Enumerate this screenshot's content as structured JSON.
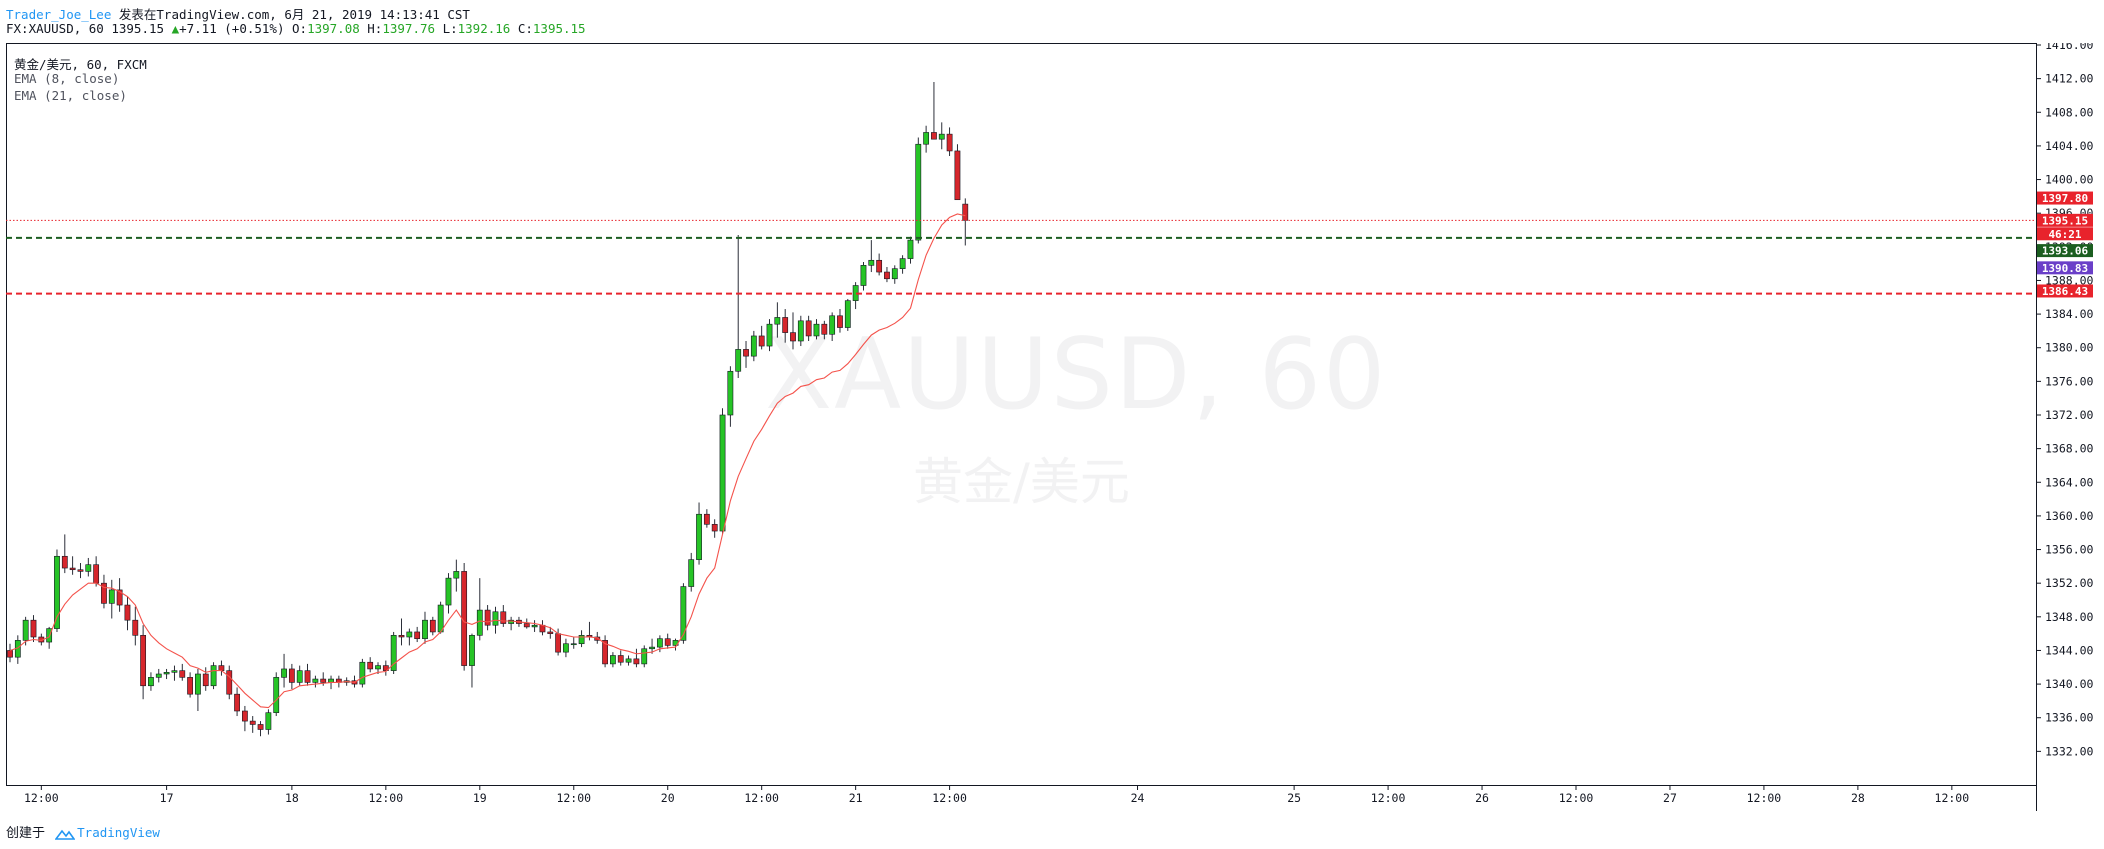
{
  "header": {
    "author": "Trader_Joe_Lee",
    "published": "发表在TradingView.com, 6月 21, 2019 14:13:41 CST",
    "symbol_line": "FX:XAUUSD, 60 1395.15",
    "change": "+7.11 (+0.51%)",
    "o_label": "O:",
    "o_value": "1397.08",
    "h_label": "H:",
    "h_value": "1397.76",
    "l_label": "L:",
    "l_value": "1392.16",
    "c_label": "C:",
    "c_value": "1395.15"
  },
  "legend": {
    "title": "黄金/美元, 60, FXCM",
    "ema8": "EMA (8, close)",
    "ema21": "EMA (21, close)"
  },
  "watermark": {
    "symbol": "XAUUSD, 60",
    "name": "黄金/美元"
  },
  "footer": {
    "created_with": "创建于",
    "brand": "TradingView"
  },
  "colors": {
    "bull": "#26c426",
    "bear": "#d6262c",
    "ema8": "#f4534c",
    "ema21": "#7046c9",
    "green_line": "#1b5e20",
    "red_line": "#e8232c",
    "grid": "#e1e3ea"
  },
  "chart_data": {
    "type": "candlestick",
    "symbol": "FX:XAUUSD",
    "interval": "60",
    "ylim": [
      1328,
      1416
    ],
    "ytick_labels": [
      "1416.00",
      "1412.00",
      "1408.00",
      "1404.00",
      "1400.00",
      "1396.00",
      "1392.00",
      "1388.00",
      "1384.00",
      "1380.00",
      "1376.00",
      "1372.00",
      "1368.00",
      "1364.00",
      "1360.00",
      "1356.00",
      "1352.00",
      "1348.00",
      "1344.00",
      "1340.00",
      "1336.00",
      "1332.00"
    ],
    "xtick_labels": [
      {
        "bar": 4,
        "label": "12:00"
      },
      {
        "bar": 20,
        "label": "17"
      },
      {
        "bar": 36,
        "label": "18"
      },
      {
        "bar": 48,
        "label": "12:00"
      },
      {
        "bar": 60,
        "label": "19"
      },
      {
        "bar": 72,
        "label": "12:00"
      },
      {
        "bar": 84,
        "label": "20"
      },
      {
        "bar": 96,
        "label": "12:00"
      },
      {
        "bar": 108,
        "label": "21"
      },
      {
        "bar": 120,
        "label": "12:00"
      },
      {
        "bar": 144,
        "label": "24"
      },
      {
        "bar": 164,
        "label": "25"
      },
      {
        "bar": 176,
        "label": "12:00"
      },
      {
        "bar": 188,
        "label": "26"
      },
      {
        "bar": 200,
        "label": "12:00"
      },
      {
        "bar": 212,
        "label": "27"
      },
      {
        "bar": 224,
        "label": "12:00"
      },
      {
        "bar": 236,
        "label": "28"
      },
      {
        "bar": 248,
        "label": "12:00"
      }
    ],
    "bars": [
      [
        1344.0,
        1344.8,
        1342.6,
        1343.2
      ],
      [
        1343.2,
        1345.8,
        1342.4,
        1345.2
      ],
      [
        1345.2,
        1348.0,
        1344.6,
        1347.6
      ],
      [
        1347.6,
        1348.2,
        1345.0,
        1345.6
      ],
      [
        1345.6,
        1346.0,
        1344.6,
        1345.0
      ],
      [
        1345.0,
        1346.8,
        1344.2,
        1346.6
      ],
      [
        1346.6,
        1356.0,
        1346.2,
        1355.2
      ],
      [
        1355.2,
        1357.8,
        1353.2,
        1353.8
      ],
      [
        1353.8,
        1355.2,
        1353.0,
        1353.6
      ],
      [
        1353.6,
        1354.4,
        1352.6,
        1353.4
      ],
      [
        1353.4,
        1355.0,
        1352.8,
        1354.2
      ],
      [
        1354.2,
        1355.2,
        1351.6,
        1352.0
      ],
      [
        1352.0,
        1353.0,
        1349.0,
        1349.6
      ],
      [
        1349.6,
        1352.4,
        1347.8,
        1351.2
      ],
      [
        1351.2,
        1352.6,
        1348.6,
        1349.4
      ],
      [
        1349.4,
        1350.4,
        1346.4,
        1347.6
      ],
      [
        1347.6,
        1349.2,
        1344.6,
        1345.8
      ],
      [
        1345.8,
        1347.0,
        1338.2,
        1339.8
      ],
      [
        1339.8,
        1341.4,
        1339.2,
        1340.8
      ],
      [
        1340.8,
        1341.8,
        1340.2,
        1341.2
      ],
      [
        1341.2,
        1341.8,
        1340.6,
        1341.4
      ],
      [
        1341.4,
        1342.2,
        1340.4,
        1341.6
      ],
      [
        1341.6,
        1342.4,
        1340.4,
        1340.8
      ],
      [
        1340.8,
        1341.4,
        1338.4,
        1338.8
      ],
      [
        1338.8,
        1341.8,
        1336.8,
        1341.2
      ],
      [
        1341.2,
        1342.0,
        1339.2,
        1339.8
      ],
      [
        1339.8,
        1342.6,
        1339.4,
        1342.2
      ],
      [
        1342.2,
        1342.8,
        1341.0,
        1341.6
      ],
      [
        1341.6,
        1342.2,
        1338.2,
        1338.8
      ],
      [
        1338.8,
        1339.6,
        1336.2,
        1336.8
      ],
      [
        1336.8,
        1337.4,
        1334.4,
        1335.6
      ],
      [
        1335.6,
        1336.2,
        1334.2,
        1335.2
      ],
      [
        1335.2,
        1335.6,
        1333.8,
        1334.6
      ],
      [
        1334.6,
        1337.0,
        1334.0,
        1336.6
      ],
      [
        1336.6,
        1341.4,
        1336.2,
        1340.8
      ],
      [
        1340.8,
        1343.6,
        1339.6,
        1341.8
      ],
      [
        1341.8,
        1342.4,
        1339.4,
        1340.2
      ],
      [
        1340.2,
        1342.2,
        1339.8,
        1341.6
      ],
      [
        1341.6,
        1342.4,
        1339.8,
        1340.2
      ],
      [
        1340.2,
        1341.0,
        1339.6,
        1340.6
      ],
      [
        1340.6,
        1341.4,
        1339.8,
        1340.2
      ],
      [
        1340.2,
        1341.0,
        1339.4,
        1340.6
      ],
      [
        1340.6,
        1341.0,
        1339.6,
        1340.2
      ],
      [
        1340.2,
        1340.8,
        1339.8,
        1340.4
      ],
      [
        1340.4,
        1341.0,
        1339.6,
        1340.0
      ],
      [
        1340.0,
        1343.0,
        1339.6,
        1342.6
      ],
      [
        1342.6,
        1343.2,
        1341.4,
        1341.8
      ],
      [
        1341.8,
        1342.6,
        1341.2,
        1342.2
      ],
      [
        1342.2,
        1342.8,
        1341.0,
        1341.6
      ],
      [
        1341.6,
        1346.2,
        1341.2,
        1345.8
      ],
      [
        1345.8,
        1347.8,
        1344.6,
        1345.6
      ],
      [
        1345.6,
        1346.6,
        1344.6,
        1346.2
      ],
      [
        1346.2,
        1346.8,
        1345.0,
        1345.4
      ],
      [
        1345.4,
        1348.6,
        1344.8,
        1347.6
      ],
      [
        1347.6,
        1348.0,
        1345.8,
        1346.2
      ],
      [
        1346.2,
        1349.8,
        1346.0,
        1349.4
      ],
      [
        1349.4,
        1353.2,
        1348.4,
        1352.6
      ],
      [
        1352.6,
        1354.8,
        1351.0,
        1353.4
      ],
      [
        1353.4,
        1354.4,
        1341.6,
        1342.2
      ],
      [
        1342.2,
        1346.0,
        1339.6,
        1345.8
      ],
      [
        1345.8,
        1352.6,
        1345.2,
        1348.8
      ],
      [
        1348.8,
        1349.4,
        1346.4,
        1347.0
      ],
      [
        1347.0,
        1349.2,
        1346.0,
        1348.6
      ],
      [
        1348.6,
        1349.4,
        1346.8,
        1347.2
      ],
      [
        1347.2,
        1348.0,
        1346.4,
        1347.6
      ],
      [
        1347.6,
        1348.0,
        1346.8,
        1347.2
      ],
      [
        1347.2,
        1347.8,
        1346.6,
        1346.8
      ],
      [
        1346.8,
        1347.6,
        1346.2,
        1347.0
      ],
      [
        1347.0,
        1347.6,
        1345.8,
        1346.2
      ],
      [
        1346.2,
        1346.8,
        1345.4,
        1346.0
      ],
      [
        1346.0,
        1346.6,
        1343.4,
        1343.8
      ],
      [
        1343.8,
        1345.4,
        1343.2,
        1344.8
      ],
      [
        1344.8,
        1345.6,
        1344.2,
        1344.8
      ],
      [
        1344.8,
        1346.4,
        1344.4,
        1345.8
      ],
      [
        1345.8,
        1347.4,
        1345.2,
        1345.6
      ],
      [
        1345.6,
        1346.2,
        1344.8,
        1345.2
      ],
      [
        1345.2,
        1345.8,
        1342.0,
        1342.4
      ],
      [
        1342.4,
        1343.8,
        1342.0,
        1343.4
      ],
      [
        1343.4,
        1344.0,
        1342.2,
        1342.6
      ],
      [
        1342.6,
        1343.4,
        1342.2,
        1343.0
      ],
      [
        1343.0,
        1344.2,
        1342.0,
        1342.4
      ],
      [
        1342.4,
        1344.6,
        1342.0,
        1344.2
      ],
      [
        1344.2,
        1345.4,
        1343.6,
        1344.4
      ],
      [
        1344.4,
        1345.8,
        1343.8,
        1345.4
      ],
      [
        1345.4,
        1346.0,
        1344.2,
        1344.6
      ],
      [
        1344.6,
        1345.4,
        1344.0,
        1345.2
      ],
      [
        1345.2,
        1352.0,
        1344.8,
        1351.6
      ],
      [
        1351.6,
        1355.6,
        1351.0,
        1354.8
      ],
      [
        1354.8,
        1361.6,
        1354.2,
        1360.2
      ],
      [
        1360.2,
        1360.8,
        1358.6,
        1359.0
      ],
      [
        1359.0,
        1359.6,
        1357.4,
        1358.2
      ],
      [
        1358.2,
        1372.8,
        1357.8,
        1372.0
      ],
      [
        1372.0,
        1377.8,
        1370.6,
        1377.2
      ],
      [
        1377.2,
        1393.4,
        1376.4,
        1379.8
      ],
      [
        1379.8,
        1380.8,
        1377.6,
        1379.0
      ],
      [
        1379.0,
        1382.0,
        1378.4,
        1381.4
      ],
      [
        1381.4,
        1382.6,
        1379.8,
        1380.2
      ],
      [
        1380.2,
        1383.4,
        1379.6,
        1382.8
      ],
      [
        1382.8,
        1385.4,
        1381.2,
        1383.6
      ],
      [
        1383.6,
        1384.6,
        1380.6,
        1381.8
      ],
      [
        1381.8,
        1384.2,
        1379.8,
        1380.8
      ],
      [
        1380.8,
        1383.8,
        1380.2,
        1383.2
      ],
      [
        1383.2,
        1383.8,
        1380.8,
        1381.4
      ],
      [
        1381.4,
        1383.4,
        1381.0,
        1382.8
      ],
      [
        1382.8,
        1383.2,
        1381.0,
        1381.6
      ],
      [
        1381.6,
        1384.2,
        1380.8,
        1383.8
      ],
      [
        1383.8,
        1384.6,
        1381.8,
        1382.4
      ],
      [
        1382.4,
        1385.8,
        1382.0,
        1385.6
      ],
      [
        1385.6,
        1387.8,
        1384.6,
        1387.4
      ],
      [
        1387.4,
        1390.2,
        1386.8,
        1389.8
      ],
      [
        1389.8,
        1392.8,
        1389.0,
        1390.4
      ],
      [
        1390.4,
        1391.2,
        1388.6,
        1389.0
      ],
      [
        1389.0,
        1389.6,
        1387.8,
        1388.2
      ],
      [
        1388.2,
        1389.8,
        1387.6,
        1389.4
      ],
      [
        1389.4,
        1391.0,
        1388.8,
        1390.6
      ],
      [
        1390.6,
        1393.2,
        1390.0,
        1392.8
      ],
      [
        1392.8,
        1405.0,
        1392.4,
        1404.2
      ],
      [
        1404.2,
        1406.4,
        1403.2,
        1405.6
      ],
      [
        1405.6,
        1411.6,
        1404.8,
        1404.8
      ],
      [
        1404.8,
        1406.8,
        1403.6,
        1405.4
      ],
      [
        1405.4,
        1406.2,
        1402.8,
        1403.4
      ],
      [
        1403.4,
        1404.2,
        1397.6,
        1397.6
      ],
      [
        1397.08,
        1397.76,
        1392.16,
        1395.15
      ]
    ],
    "ema8": [
      1344.0,
      1344.3,
      1345.1,
      1345.3,
      1345.2,
      1345.6,
      1348.0,
      1349.5,
      1350.6,
      1351.3,
      1352.0,
      1352.0,
      1351.5,
      1351.4,
      1351.0,
      1350.4,
      1349.4,
      1347.2,
      1345.8,
      1344.9,
      1344.2,
      1343.7,
      1343.2,
      1342.2,
      1341.9,
      1341.4,
      1341.6,
      1341.6,
      1340.9,
      1339.9,
      1338.9,
      1338.1,
      1337.3,
      1337.2,
      1338.1,
      1339.1,
      1339.3,
      1339.8,
      1339.9,
      1340.0,
      1340.1,
      1340.2,
      1340.2,
      1340.3,
      1340.2,
      1340.8,
      1341.1,
      1341.4,
      1341.5,
      1342.4,
      1343.1,
      1343.8,
      1344.2,
      1345.0,
      1345.3,
      1346.2,
      1347.6,
      1348.8,
      1347.4,
      1347.1,
      1347.5,
      1347.4,
      1347.6,
      1347.5,
      1347.5,
      1347.4,
      1347.3,
      1347.2,
      1347.0,
      1346.7,
      1346.0,
      1345.8,
      1345.6,
      1345.6,
      1345.6,
      1345.5,
      1344.8,
      1344.5,
      1344.1,
      1343.9,
      1343.6,
      1343.7,
      1343.8,
      1344.2,
      1344.3,
      1344.4,
      1345.9,
      1348.0,
      1350.7,
      1352.6,
      1353.8,
      1357.8,
      1361.8,
      1364.7,
      1366.8,
      1368.9,
      1370.3,
      1371.9,
      1373.4,
      1374.2,
      1374.6,
      1375.4,
      1375.6,
      1376.2,
      1376.4,
      1377.1,
      1377.3,
      1378.1,
      1379.2,
      1380.4,
      1381.5,
      1382.1,
      1382.4,
      1382.9,
      1383.6,
      1384.7,
      1388.1,
      1391.0,
      1393.0,
      1394.6,
      1395.5,
      1395.9,
      1395.7
    ]
  },
  "levels": {
    "green_dashed": 1393.06,
    "red_dashed": 1386.43,
    "red_dotted": 1395.15
  },
  "price_labels": [
    {
      "text": "1397.80",
      "price": 1397.8,
      "bg": "#e8232c"
    },
    {
      "text": "1395.15",
      "price": 1395.15,
      "bg": "#e8232c"
    },
    {
      "text": "46:21",
      "price": 1393.55,
      "bg": "#e8232c"
    },
    {
      "text": "1393.06",
      "price": 1391.55,
      "bg": "#1b5e20"
    },
    {
      "text": "1390.83",
      "price": 1389.5,
      "bg": "#6a3fc8"
    },
    {
      "text": "1386.43",
      "price": 1386.75,
      "bg": "#e8232c"
    }
  ]
}
